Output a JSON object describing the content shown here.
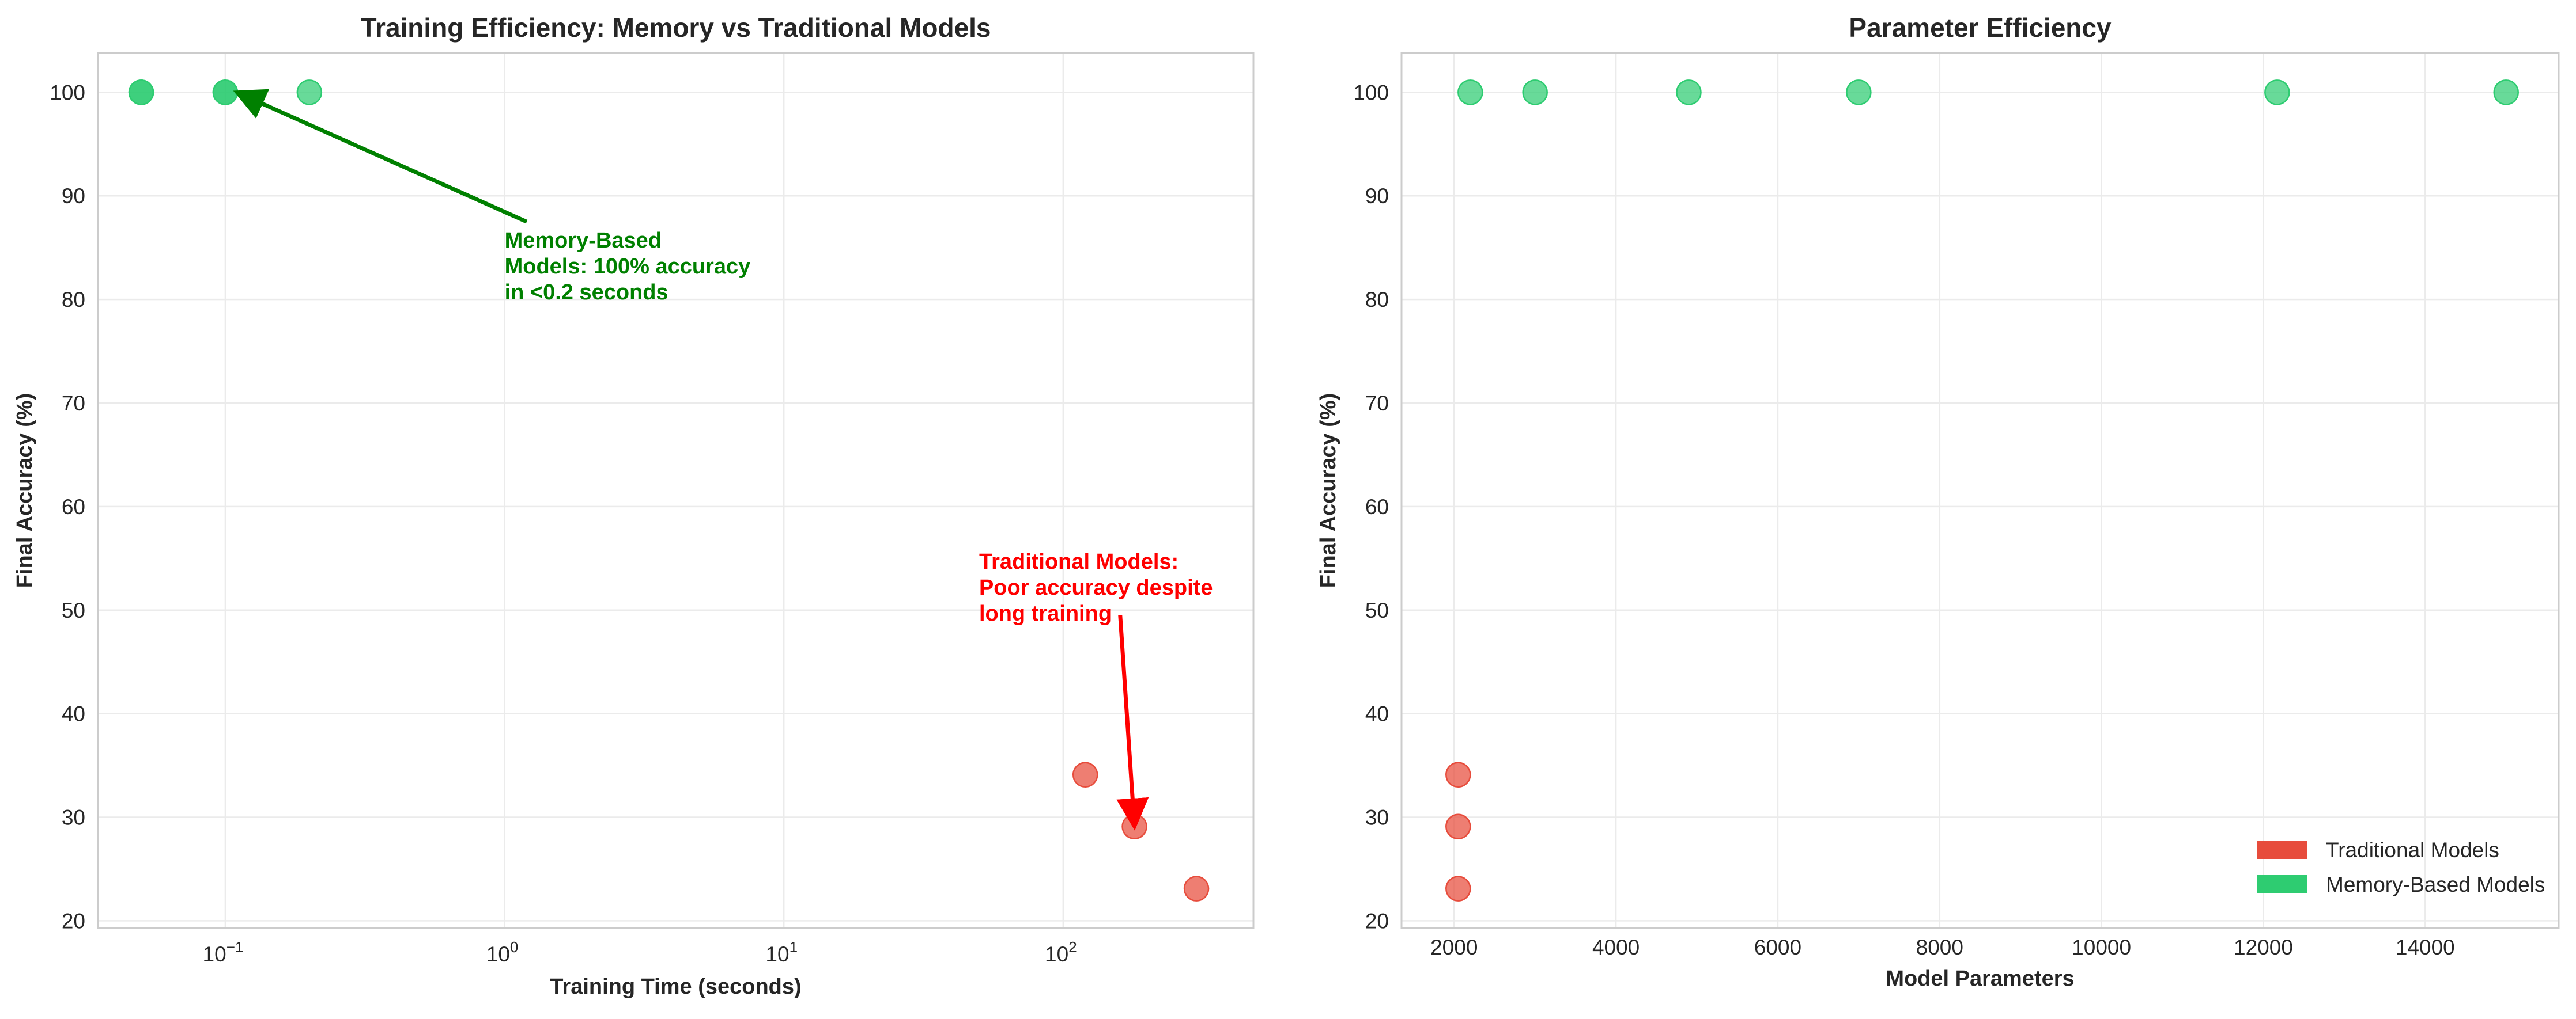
{
  "colors": {
    "traditional": "#e74c3c",
    "memory": "#2ecc71",
    "green_annotation": "#008000",
    "red_annotation": "#ff0000",
    "grid": "#ebebeb",
    "spine": "#cccccc"
  },
  "chart_data": [
    {
      "type": "scatter",
      "title": "Training Efficiency: Memory vs Traditional Models",
      "xlabel": "Training Time (seconds)",
      "ylabel": "Final Accuracy (%)",
      "xscale": "log",
      "xlim": [
        0.035,
        480
      ],
      "ylim": [
        19.3,
        103.8
      ],
      "xticks": [
        {
          "value": 0.1,
          "base": "10",
          "exp": "−1"
        },
        {
          "value": 1,
          "base": "10",
          "exp": "0"
        },
        {
          "value": 10,
          "base": "10",
          "exp": "1"
        },
        {
          "value": 100,
          "base": "10",
          "exp": "2"
        }
      ],
      "yticks": [
        20,
        30,
        40,
        50,
        60,
        70,
        80,
        90,
        100
      ],
      "grid": true,
      "series": [
        {
          "group": "traditional",
          "points": [
            [
              120,
              34.1
            ],
            [
              180,
              29.1
            ],
            [
              300,
              23.1
            ]
          ]
        },
        {
          "group": "memory",
          "points": [
            [
              0.05,
              100
            ],
            [
              0.05,
              100
            ],
            [
              0.1,
              100
            ],
            [
              0.1,
              100
            ],
            [
              0.2,
              100
            ]
          ]
        }
      ],
      "annotations": [
        {
          "group": "green",
          "lines": [
            "Memory-Based",
            "Models: 100% accuracy",
            "in <0.2 seconds"
          ],
          "text_at": [
            1.0,
            85
          ],
          "arrow_to": [
            0.11,
            100
          ],
          "arrow_from": [
            1.2,
            87.5
          ]
        },
        {
          "group": "red",
          "lines": [
            "Traditional Models:",
            "Poor accuracy despite",
            "long training"
          ],
          "text_at": [
            50,
            54
          ],
          "arrow_to": [
            180,
            29.1
          ],
          "arrow_from": [
            160,
            49.5
          ]
        }
      ]
    },
    {
      "type": "scatter",
      "title": "Parameter Efficiency",
      "xlabel": "Model Parameters",
      "ylabel": "Final Accuracy (%)",
      "xlim": [
        1350,
        15650
      ],
      "ylim": [
        19.3,
        103.8
      ],
      "xticks": [
        2000,
        4000,
        6000,
        8000,
        10000,
        12000,
        14000
      ],
      "yticks": [
        20,
        30,
        40,
        50,
        60,
        70,
        80,
        90,
        100
      ],
      "grid": true,
      "legend_position": "lower-right",
      "legend": [
        "Traditional Models",
        "Memory-Based Models"
      ],
      "series": [
        {
          "group": "traditional",
          "name": "Traditional Models",
          "points": [
            [
              2050,
              34.1
            ],
            [
              2050,
              29.1
            ],
            [
              2050,
              23.1
            ]
          ]
        },
        {
          "group": "memory",
          "name": "Memory-Based Models",
          "points": [
            [
              2200,
              100
            ],
            [
              3000,
              100
            ],
            [
              4900,
              100
            ],
            [
              7000,
              100
            ],
            [
              12170,
              100
            ],
            [
              15000,
              100
            ]
          ]
        }
      ]
    }
  ]
}
